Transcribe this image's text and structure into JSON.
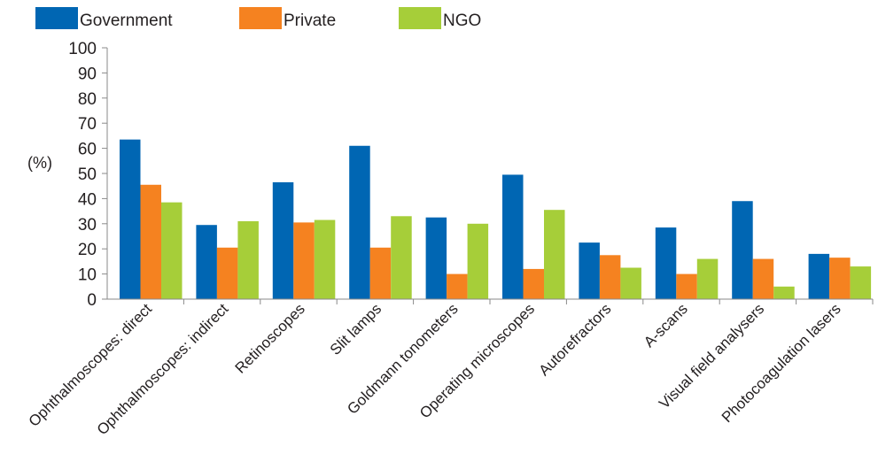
{
  "chart_data": {
    "type": "bar",
    "title": "",
    "xlabel": "",
    "ylabel": "(%)",
    "ylim": [
      0,
      100
    ],
    "yticks": [
      0,
      10,
      20,
      30,
      40,
      50,
      60,
      70,
      80,
      90,
      100
    ],
    "grid": false,
    "legend_position": "top-left",
    "categories": [
      "Ophthalmoscopes: direct",
      "Ophthalmoscopes: indirect",
      "Retinoscopes",
      "Slit lamps",
      "Goldmann tonometers",
      "Operating microscopes",
      "Autorefractors",
      "A-scans",
      "Visual field analysers",
      "Photocoagulation lasers"
    ],
    "series": [
      {
        "name": "Government",
        "color": "#0066b3",
        "values": [
          63.5,
          29.5,
          46.5,
          61,
          32.5,
          49.5,
          22.5,
          28.5,
          39,
          18
        ]
      },
      {
        "name": "Private",
        "color": "#f58220",
        "values": [
          45.5,
          20.5,
          30.5,
          20.5,
          10,
          12,
          17.5,
          10,
          16,
          16.5
        ]
      },
      {
        "name": "NGO",
        "color": "#a6ce39",
        "values": [
          38.5,
          31,
          31.5,
          33,
          30,
          35.5,
          12.5,
          16,
          5,
          13
        ]
      }
    ]
  }
}
